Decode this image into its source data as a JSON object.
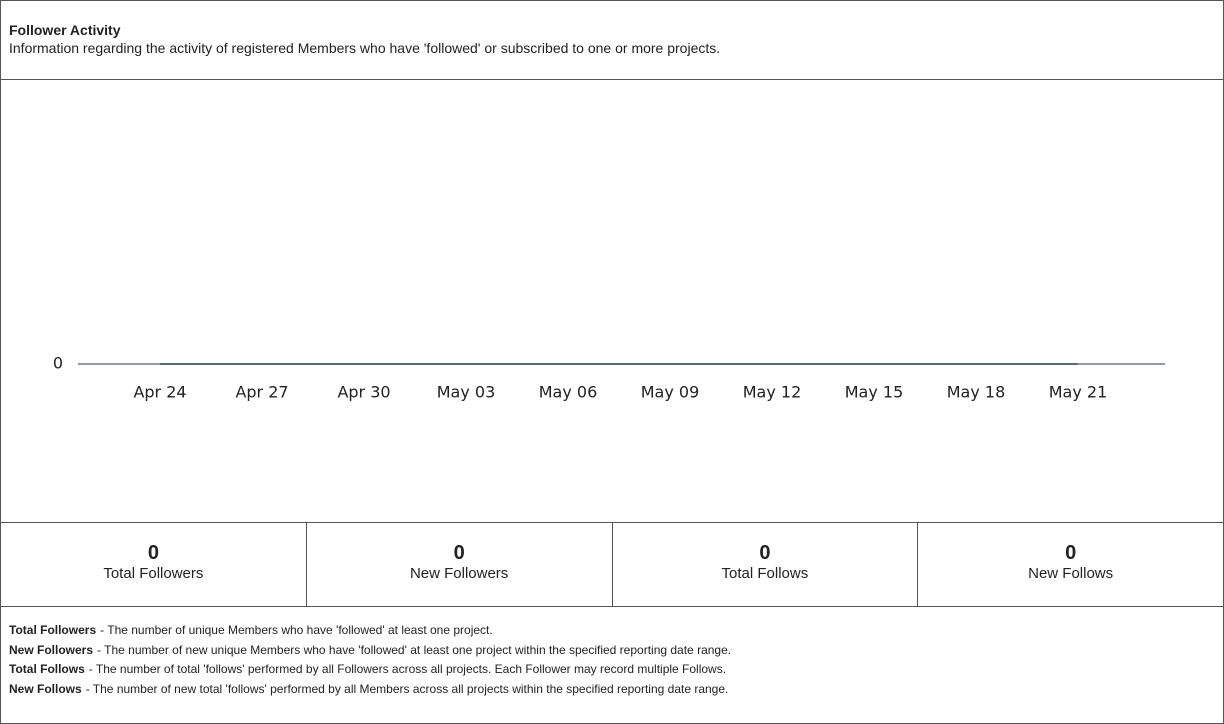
{
  "header": {
    "title": "Follower Activity",
    "description": "Information regarding the activity of registered Members who have 'followed' or subscribed to one or more projects."
  },
  "chart_data": {
    "type": "line",
    "categories": [
      "Apr 24",
      "Apr 27",
      "Apr 30",
      "May 03",
      "May 06",
      "May 09",
      "May 12",
      "May 15",
      "May 18",
      "May 21"
    ],
    "values": [
      0,
      0,
      0,
      0,
      0,
      0,
      0,
      0,
      0,
      0
    ],
    "color": "#1f3b4d",
    "ylim": [
      0,
      1
    ],
    "yticks": [
      0
    ]
  },
  "stats": [
    {
      "value": 0,
      "label": "Total Followers"
    },
    {
      "value": 0,
      "label": "New Followers"
    },
    {
      "value": 0,
      "label": "Total Follows"
    },
    {
      "value": 0,
      "label": "New Follows"
    }
  ],
  "definitions": [
    {
      "term": "Total Followers",
      "text": "- The number of unique Members who have 'followed' at least one project."
    },
    {
      "term": "New Followers",
      "text": "- The number of new unique Members who have 'followed' at least one project within the specified reporting date range."
    },
    {
      "term": "Total Follows",
      "text": "- The number of total 'follows' performed by all Followers across all projects. Each Follower may record multiple Follows."
    },
    {
      "term": "New Follows",
      "text": "- The number of new total 'follows' performed by all Members across all projects within the specified reporting date range."
    }
  ]
}
